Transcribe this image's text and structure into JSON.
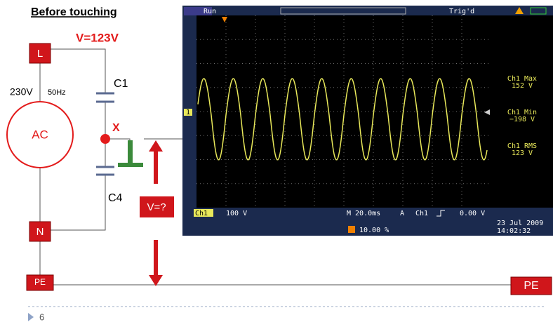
{
  "title": "Before touching",
  "circuit": {
    "voltage_note": "V=123V",
    "line": "L",
    "supply_voltage": "230V",
    "frequency": "50Hz",
    "source": "AC",
    "cap_top": "C1",
    "node": "X",
    "cap_bottom": "C4",
    "unknown_voltage": "V=?",
    "neutral": "N",
    "earth_left": "PE",
    "earth_right": "PE"
  },
  "scope": {
    "status": "Run",
    "trigger_state": "Trig'd",
    "channel_marker": "1",
    "measurements": [
      {
        "label": "Ch1 Max",
        "value": "152 V"
      },
      {
        "label": "Ch1 Min",
        "value": "−198 V"
      },
      {
        "label": "Ch1 RMS",
        "value": "123 V"
      }
    ],
    "channel": "Ch1",
    "scale": "100 V",
    "timebase": "M 20.0ms",
    "trigger_mode": "A",
    "trigger_channel": "Ch1",
    "trigger_level": "0.00 V",
    "trigger_position": "10.00 %",
    "date": "23 Jul  2009",
    "time": "14:02:32"
  },
  "footer": {
    "page": "6"
  }
}
